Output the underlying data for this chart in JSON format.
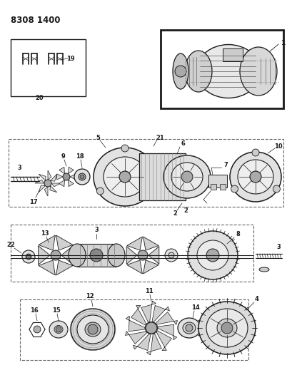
{
  "title": "8308 1400",
  "bg": "#f5f5f0",
  "lc": "#1a1a1a",
  "fig_w": 4.1,
  "fig_h": 5.33,
  "dpi": 100
}
